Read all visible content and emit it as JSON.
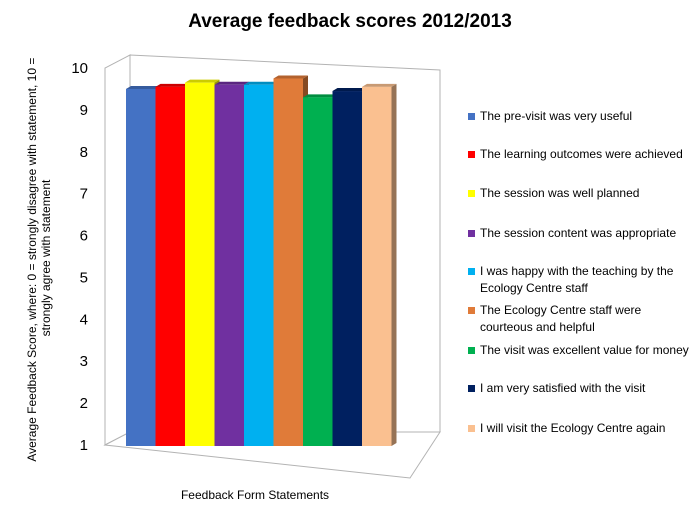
{
  "chart_data": {
    "type": "bar",
    "title": "Average feedback scores 2012/2013",
    "xlabel": "Feedback Form Statements",
    "ylabel_lines": [
      "Average Feedback Score, where: 0 = strongly disagree with statement, 10 =",
      "strongly agree with statement"
    ],
    "ylim": [
      1,
      10
    ],
    "yticks": [
      "1",
      "2",
      "3",
      "4",
      "5",
      "6",
      "7",
      "8",
      "9",
      "10"
    ],
    "legend_position": "right",
    "series": [
      {
        "name": "The pre-visit was very useful",
        "value": 9.5,
        "color": "#4472C4"
      },
      {
        "name": "The learning outcomes were achieved",
        "value": 9.55,
        "color": "#FF0000"
      },
      {
        "name": "The session was well planned",
        "value": 9.65,
        "color": "#FFFF00"
      },
      {
        "name": "The session content was appropriate",
        "value": 9.6,
        "color": "#7030A0"
      },
      {
        "name": "I was happy with the teaching by the Ecology Centre staff",
        "value": 9.6,
        "color": "#00B0F0"
      },
      {
        "name": "The Ecology Centre staff were courteous and helpful",
        "value": 9.75,
        "color": "#E07B39"
      },
      {
        "name": "The visit was excellent value for money",
        "value": 9.3,
        "color": "#00B050"
      },
      {
        "name": "I am very satisfied with the visit",
        "value": 9.45,
        "color": "#002060"
      },
      {
        "name": "I will visit the Ecology Centre again",
        "value": 9.55,
        "color": "#FAC090"
      }
    ]
  }
}
